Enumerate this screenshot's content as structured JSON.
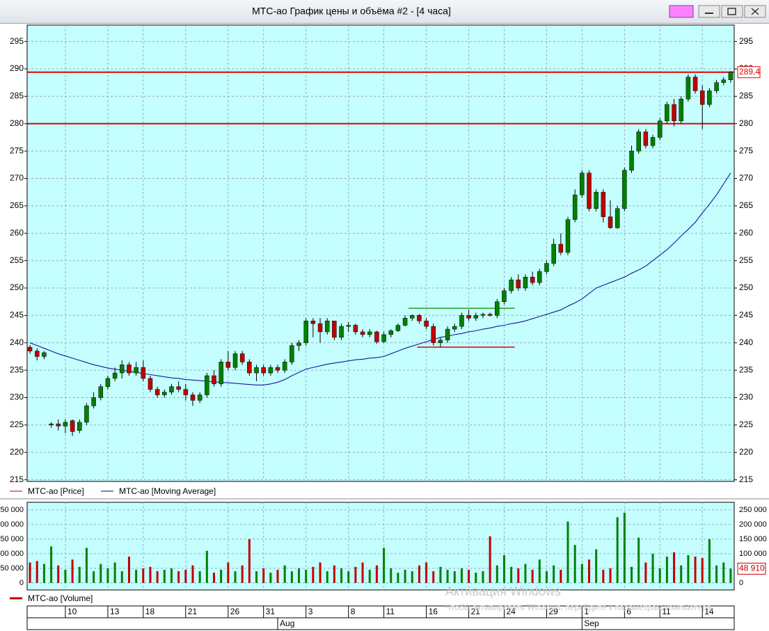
{
  "chart_data": {
    "type": "candlestick",
    "title": "МТС-ао График цены и объёма #2 - [4 часа]",
    "series": [
      {
        "name": "МТС-ао [Price]",
        "color": "#c00000",
        "up_color": "#008000",
        "down_color": "#c00000",
        "ohlc": [
          [
            239.2,
            239.6,
            238,
            238.5
          ],
          [
            238.5,
            239,
            236.8,
            237.5
          ],
          [
            237.5,
            238.5,
            237,
            238.2
          ],
          [
            225,
            225.5,
            224.5,
            225.2
          ],
          [
            225.2,
            226,
            224,
            224.8
          ],
          [
            224.8,
            226,
            223.5,
            225.5
          ],
          [
            225.8,
            226,
            223,
            223.8
          ],
          [
            224,
            226,
            223.5,
            225.5
          ],
          [
            225.5,
            229,
            225,
            228.5
          ],
          [
            228.5,
            231,
            228,
            230
          ],
          [
            230,
            232.5,
            229.5,
            232
          ],
          [
            232,
            234,
            231.5,
            233.5
          ],
          [
            233.5,
            235.5,
            233,
            234.5
          ],
          [
            234.5,
            236.8,
            233.5,
            236
          ],
          [
            236,
            236.5,
            234,
            234.5
          ],
          [
            234.5,
            236.5,
            234,
            235.5
          ],
          [
            235.5,
            236.8,
            233,
            233.5
          ],
          [
            233.5,
            234,
            231,
            231.5
          ],
          [
            231.5,
            232,
            230,
            230.5
          ],
          [
            230.5,
            231.5,
            230,
            231
          ],
          [
            231,
            232.5,
            230.5,
            232
          ],
          [
            232,
            233,
            231,
            231.5
          ],
          [
            231.5,
            232.5,
            229.5,
            230.5
          ],
          [
            230.5,
            231,
            228.5,
            229.5
          ],
          [
            229.5,
            231,
            229,
            230.5
          ],
          [
            230.5,
            234.5,
            230,
            234
          ],
          [
            234,
            235,
            232,
            232.5
          ],
          [
            232.5,
            237,
            232,
            236.5
          ],
          [
            236.5,
            238.5,
            235,
            235.5
          ],
          [
            235.5,
            238.5,
            235,
            238
          ],
          [
            238,
            238.5,
            236,
            236.5
          ],
          [
            236.5,
            237,
            234,
            234.5
          ],
          [
            234.5,
            236,
            233,
            235.5
          ],
          [
            235.5,
            236,
            234,
            234.5
          ],
          [
            234.5,
            236,
            234,
            235.5
          ],
          [
            235.5,
            236,
            234.5,
            235
          ],
          [
            235,
            237,
            234.5,
            236.5
          ],
          [
            236.5,
            240,
            236,
            239.5
          ],
          [
            239.5,
            240.5,
            238.5,
            240
          ],
          [
            240,
            244.5,
            239.5,
            244
          ],
          [
            244,
            244.5,
            241,
            243.5
          ],
          [
            243.5,
            244.5,
            240,
            242
          ],
          [
            242,
            244.5,
            241.5,
            244
          ],
          [
            244,
            244,
            240.5,
            241
          ],
          [
            241,
            243.5,
            240.5,
            243
          ],
          [
            243,
            243.8,
            242,
            243.2
          ],
          [
            243.2,
            243.5,
            241.5,
            242
          ],
          [
            242,
            242.5,
            241,
            241.5
          ],
          [
            241.5,
            242.5,
            241,
            242
          ],
          [
            242,
            242.2,
            239.8,
            240.2
          ],
          [
            240.2,
            242,
            240,
            241.5
          ],
          [
            241.5,
            242.5,
            241,
            242.2
          ],
          [
            242.2,
            243.5,
            242,
            243.2
          ],
          [
            243.2,
            245,
            243,
            244.5
          ],
          [
            244.5,
            245.2,
            244,
            245
          ],
          [
            245,
            245.3,
            243.5,
            244
          ],
          [
            244,
            244.5,
            242.5,
            243
          ],
          [
            243,
            243.5,
            239.5,
            240
          ],
          [
            240,
            241,
            239.2,
            240.5
          ],
          [
            240.5,
            243,
            240,
            242.5
          ],
          [
            242.5,
            243.5,
            242,
            243
          ],
          [
            243,
            245.5,
            242.5,
            245
          ],
          [
            245,
            246,
            244,
            244.5
          ],
          [
            244.5,
            245.5,
            244,
            245
          ],
          [
            245,
            245.5,
            244.5,
            245.2
          ],
          [
            245.2,
            245.5,
            244.8,
            245
          ],
          [
            245,
            248,
            244.5,
            247.5
          ],
          [
            247.5,
            250,
            247,
            249.5
          ],
          [
            249.5,
            252,
            249,
            251.5
          ],
          [
            251.5,
            252.5,
            249.5,
            250
          ],
          [
            250,
            252.5,
            249.5,
            252
          ],
          [
            252,
            253,
            250.5,
            251
          ],
          [
            251,
            253.5,
            250.5,
            253
          ],
          [
            253,
            255,
            252.5,
            254.5
          ],
          [
            254.5,
            259,
            254,
            258
          ],
          [
            258,
            260,
            256,
            256.5
          ],
          [
            256.5,
            263,
            256,
            262.5
          ],
          [
            262.5,
            268,
            262,
            267
          ],
          [
            267,
            271.5,
            266.5,
            271
          ],
          [
            271,
            271.5,
            264,
            264.5
          ],
          [
            264.5,
            268,
            264,
            267.5
          ],
          [
            267.5,
            268,
            262,
            263
          ],
          [
            263,
            266,
            260.8,
            261
          ],
          [
            261,
            265,
            260.8,
            264.5
          ],
          [
            264.5,
            272,
            264,
            271.5
          ],
          [
            271.5,
            276,
            271,
            275
          ],
          [
            275,
            279,
            274.5,
            278.5
          ],
          [
            278.5,
            279,
            275.5,
            276
          ],
          [
            276,
            278,
            275.5,
            277.5
          ],
          [
            277.5,
            281,
            277,
            280.5
          ],
          [
            280.5,
            284,
            280,
            283.5
          ],
          [
            283.5,
            284.5,
            279.5,
            280.5
          ],
          [
            280.5,
            285,
            280,
            284.5
          ],
          [
            284.5,
            289,
            284,
            288.5
          ],
          [
            288.5,
            289,
            285.5,
            286
          ],
          [
            286,
            287,
            279,
            283.5
          ],
          [
            283.5,
            286.5,
            283,
            286
          ],
          [
            286,
            288,
            285.5,
            287.5
          ],
          [
            287.5,
            288.5,
            287,
            288
          ],
          [
            288,
            289.6,
            287.5,
            289.4
          ]
        ]
      },
      {
        "name": "МТС-ао [Moving Average]",
        "color": "#00008b",
        "values": [
          240,
          239.5,
          239,
          238.5,
          238,
          237.6,
          237.2,
          236.8,
          236.4,
          236,
          235.7,
          235.4,
          235.2,
          235,
          234.8,
          234.6,
          234.4,
          234.2,
          234,
          233.8,
          233.6,
          233.5,
          233.3,
          233.2,
          233.1,
          233,
          232.9,
          232.8,
          232.7,
          232.6,
          232.5,
          232.4,
          232.3,
          232.3,
          232.5,
          232.8,
          233.3,
          234,
          234.6,
          235.2,
          235.5,
          235.8,
          236.1,
          236.3,
          236.5,
          236.7,
          236.9,
          237,
          237.2,
          237.3,
          237.5,
          238,
          238.5,
          239,
          239.4,
          239.8,
          240.2,
          240.6,
          241,
          241.2,
          241.5,
          241.7,
          242,
          242.2,
          242.5,
          242.7,
          243,
          243.2,
          243.5,
          243.7,
          244,
          244.4,
          244.8,
          245.2,
          245.6,
          246,
          246.7,
          247.3,
          248,
          249,
          250,
          250.5,
          251,
          251.5,
          252,
          252.7,
          253.3,
          254,
          255,
          256,
          257,
          258.2,
          259.5,
          260.7,
          262,
          263.7,
          265.3,
          267,
          269,
          271
        ]
      }
    ],
    "xlim": [
      -0.4,
      99.5
    ],
    "ylim": [
      214.7,
      298.0
    ],
    "yticks": [
      215,
      220,
      225,
      230,
      235,
      240,
      245,
      250,
      255,
      260,
      265,
      270,
      275,
      280,
      285,
      290,
      295
    ],
    "grid": true,
    "hlines": [
      {
        "value": 289.4,
        "label": "289,4",
        "color": "#e00000"
      },
      {
        "value": 280,
        "color": "#e00000"
      }
    ],
    "segments": [
      {
        "value": 246.3,
        "start": 53.5,
        "end": 68.5,
        "color": "#2a9d2a"
      },
      {
        "value": 239.2,
        "start": 54.7,
        "end": 68.5,
        "color": "#e00000"
      }
    ],
    "volume": {
      "name": "МТС-ао [Volume]",
      "color": "#c00000",
      "values": [
        70000,
        75000,
        65000,
        125000,
        60000,
        45000,
        80000,
        55000,
        120000,
        40000,
        65000,
        50000,
        70000,
        40000,
        90000,
        45000,
        50000,
        55000,
        40000,
        45000,
        50000,
        40000,
        45000,
        60000,
        40000,
        110000,
        35000,
        45000,
        70000,
        40000,
        60000,
        150000,
        40000,
        50000,
        35000,
        45000,
        60000,
        40000,
        50000,
        45000,
        55000,
        70000,
        40000,
        60000,
        50000,
        40000,
        55000,
        70000,
        45000,
        60000,
        120000,
        50000,
        35000,
        45000,
        40000,
        60000,
        70000,
        40000,
        55000,
        45000,
        40000,
        50000,
        45000,
        35000,
        40000,
        160000,
        60000,
        95000,
        55000,
        50000,
        65000,
        45000,
        80000,
        40000,
        60000,
        45000,
        210000,
        130000,
        65000,
        80000,
        115000,
        45000,
        50000,
        225000,
        240000,
        55000,
        155000,
        70000,
        100000,
        50000,
        90000,
        105000,
        60000,
        95000,
        90000,
        85000,
        150000,
        60000,
        70000,
        48910
      ],
      "marker": {
        "value": 48910,
        "label": "48 910"
      },
      "ylim": [
        -24000,
        276000
      ],
      "yticks": [
        {
          "value": 0,
          "label": "0"
        },
        {
          "value": 50000,
          "label": "50 000"
        },
        {
          "value": 100000,
          "label": "100 000"
        },
        {
          "value": 150000,
          "label": "150 000"
        },
        {
          "value": 200000,
          "label": "200 000"
        },
        {
          "value": 250000,
          "label": "250 000"
        }
      ]
    },
    "x_labels": [
      {
        "value": 5,
        "label": "10"
      },
      {
        "value": 11,
        "label": "13"
      },
      {
        "value": 16,
        "label": "18"
      },
      {
        "value": 22,
        "label": "21"
      },
      {
        "value": 28,
        "label": "26"
      },
      {
        "value": 33,
        "label": "31"
      },
      {
        "value": 39,
        "label": "3"
      },
      {
        "value": 45,
        "label": "8"
      },
      {
        "value": 50,
        "label": "11"
      },
      {
        "value": 56,
        "label": "16"
      },
      {
        "value": 62,
        "label": "21"
      },
      {
        "value": 67,
        "label": "24"
      },
      {
        "value": 73,
        "label": "29"
      },
      {
        "value": 78,
        "label": "1"
      },
      {
        "value": 84,
        "label": "6"
      },
      {
        "value": 89,
        "label": "11"
      },
      {
        "value": 95,
        "label": "14"
      }
    ],
    "month_labels": [
      {
        "value": 35,
        "label": "Aug"
      },
      {
        "value": 78,
        "label": "Sep"
      }
    ]
  },
  "watermark": [
    "Активация Windows",
    "Чтобы активировать Windows, перейдите к параметрам компьютера."
  ]
}
